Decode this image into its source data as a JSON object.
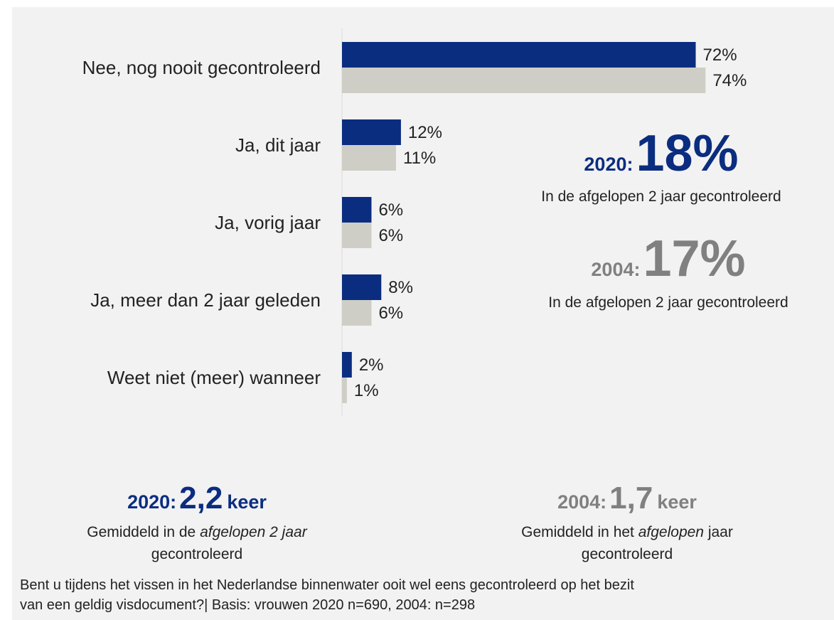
{
  "chart_data": {
    "type": "bar",
    "categories": [
      "Nee, nog nooit gecontroleerd",
      "Ja, dit jaar",
      "Ja, vorig jaar",
      "Ja, meer dan 2 jaar geleden",
      "Weet niet (meer) wanneer"
    ],
    "series": [
      {
        "color": "#0b2d80",
        "values": [
          72,
          12,
          6,
          8,
          2
        ],
        "value_labels": [
          "72%",
          "12%",
          "6%",
          "8%",
          "2%"
        ]
      },
      {
        "color": "#cfcec6",
        "values": [
          74,
          11,
          6,
          6,
          1
        ],
        "value_labels": [
          "74%",
          "11%",
          "6%",
          "6%",
          "1%"
        ]
      }
    ]
  },
  "annotations": {
    "right_2020": {
      "year": "2020:",
      "value": "18%",
      "text": "In de afgelopen 2 jaar gecontroleerd"
    },
    "right_2004": {
      "year": "2004:",
      "value": "17%",
      "text": "In de afgelopen 2 jaar gecontroleerd"
    },
    "bottom_2020": {
      "year": "2020:",
      "value": "2,2",
      "unit": "keer",
      "line1": "Gemiddeld in de ",
      "line1_italic": "afgelopen 2 jaar",
      "line2": "gecontroleerd"
    },
    "bottom_2004": {
      "year": "2004:",
      "value": "1,7",
      "unit": "keer",
      "line1": "Gemiddeld in het ",
      "line1_italic": "afgelopen",
      "line1_end": " jaar",
      "line2": "gecontroleerd"
    }
  },
  "footer": [
    "Bent u tijdens het vissen in het Nederlandse binnenwater ooit wel eens gecontroleerd op het bezit",
    "van een geldig visdocument?| Basis: vrouwen 2020 n=690, 2004: n=298"
  ]
}
